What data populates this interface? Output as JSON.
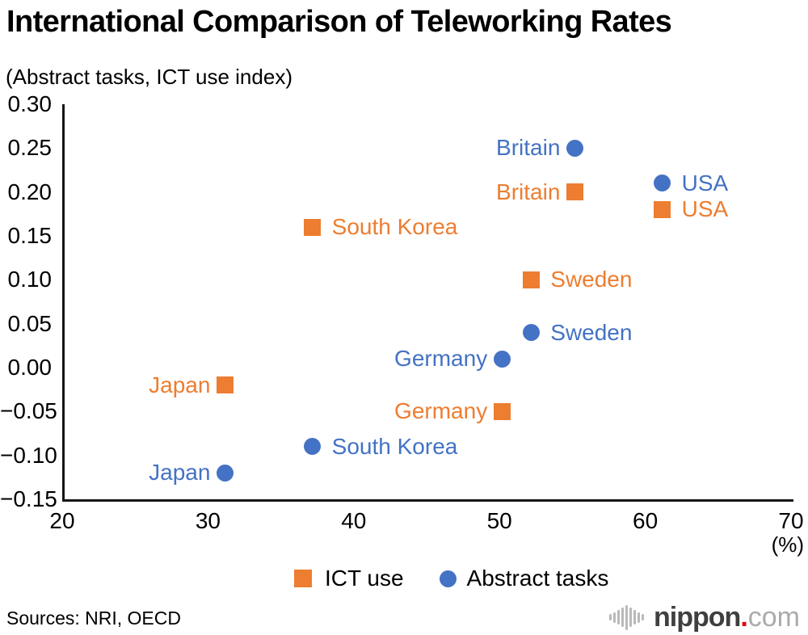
{
  "header": {
    "title": "International Comparison of Teleworking Rates",
    "subtitle": "(Abstract tasks, ICT use index)"
  },
  "chart_data": {
    "type": "scatter",
    "xlabel": "(%)",
    "ylabel": "",
    "xlim": [
      20,
      70
    ],
    "ylim": [
      -0.15,
      0.3
    ],
    "grid": false,
    "legend_position": "bottom-center",
    "x_ticks": [
      {
        "v": 20,
        "label": "20"
      },
      {
        "v": 30,
        "label": "30"
      },
      {
        "v": 40,
        "label": "40"
      },
      {
        "v": 50,
        "label": "50"
      },
      {
        "v": 60,
        "label": "60"
      },
      {
        "v": 70,
        "label": "70"
      }
    ],
    "y_ticks": [
      {
        "v": 0.3,
        "label": "0.30"
      },
      {
        "v": 0.25,
        "label": "0.25"
      },
      {
        "v": 0.2,
        "label": "0.20"
      },
      {
        "v": 0.15,
        "label": "0.15"
      },
      {
        "v": 0.1,
        "label": "0.10"
      },
      {
        "v": 0.05,
        "label": "0.05"
      },
      {
        "v": 0.0,
        "label": "0.00"
      },
      {
        "v": -0.05,
        "label": "−0.05"
      },
      {
        "v": -0.1,
        "label": "−0.10"
      },
      {
        "v": -0.15,
        "label": "−0.15"
      }
    ],
    "series": [
      {
        "name": "ICT use",
        "marker": "square",
        "color": "#ED7D31",
        "points": [
          {
            "country": "Japan",
            "x": 31,
            "y": -0.02,
            "label_side": "left"
          },
          {
            "country": "South Korea",
            "x": 37,
            "y": 0.16,
            "label_side": "right"
          },
          {
            "country": "Germany",
            "x": 50,
            "y": -0.05,
            "label_side": "left"
          },
          {
            "country": "Sweden",
            "x": 52,
            "y": 0.1,
            "label_side": "right"
          },
          {
            "country": "Britain",
            "x": 55,
            "y": 0.2,
            "label_side": "left"
          },
          {
            "country": "USA",
            "x": 61,
            "y": 0.18,
            "label_side": "right"
          }
        ]
      },
      {
        "name": "Abstract tasks",
        "marker": "circle",
        "color": "#4472C4",
        "points": [
          {
            "country": "Japan",
            "x": 31,
            "y": -0.12,
            "label_side": "left"
          },
          {
            "country": "South Korea",
            "x": 37,
            "y": -0.09,
            "label_side": "right"
          },
          {
            "country": "Germany",
            "x": 50,
            "y": 0.01,
            "label_side": "left"
          },
          {
            "country": "Sweden",
            "x": 52,
            "y": 0.04,
            "label_side": "right"
          },
          {
            "country": "Britain",
            "x": 55,
            "y": 0.25,
            "label_side": "left"
          },
          {
            "country": "USA",
            "x": 61,
            "y": 0.21,
            "label_side": "right"
          }
        ]
      }
    ]
  },
  "footer": {
    "sources": "Sources: NRI, OECD",
    "logo": {
      "icon": "audio-bars-icon",
      "name": "nippon",
      "dot": ".",
      "tld": "com",
      "dot_color": "#e60012"
    }
  }
}
